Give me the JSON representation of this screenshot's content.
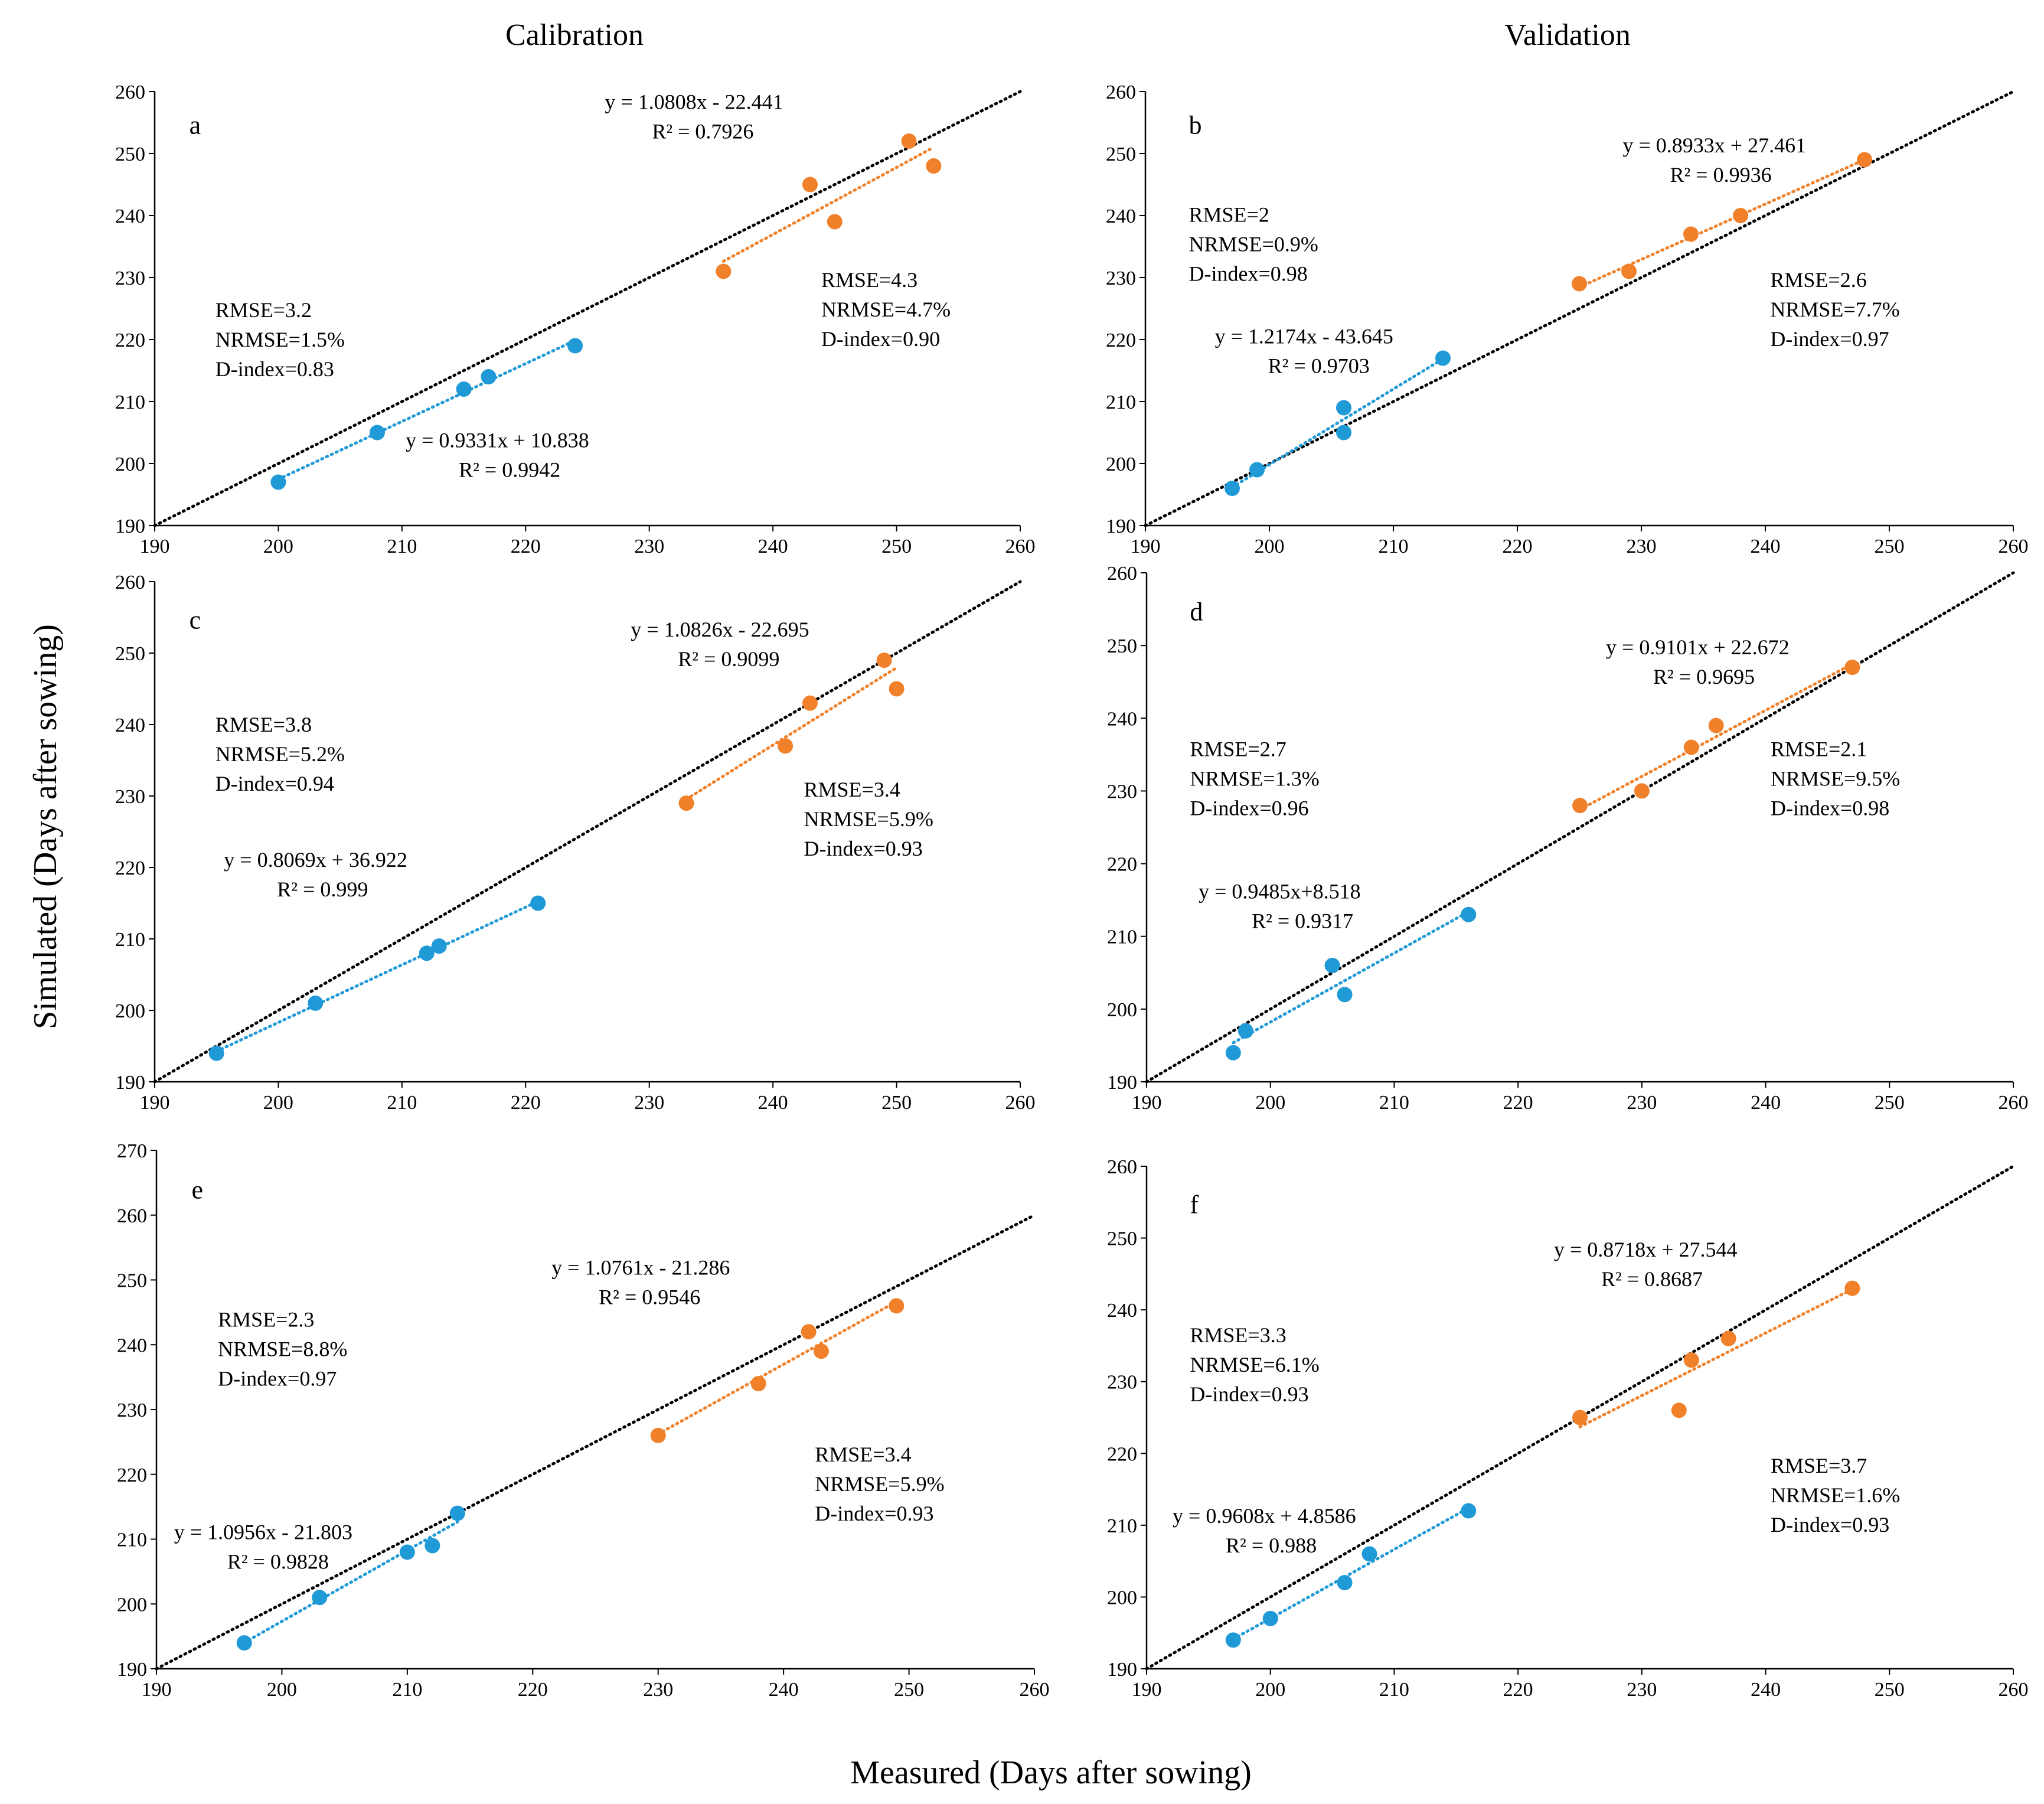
{
  "figure": {
    "col_titles": [
      "Calibration",
      "Validation"
    ],
    "xlabel": "Measured (Days after sowing)",
    "ylabel": "Simulated (Days after sowing)",
    "colors": {
      "blue": "#1f9ad6",
      "orange": "#f0812a",
      "one_to_one": "#000000"
    }
  },
  "chart_data": [
    {
      "type": "scatter",
      "label": "a",
      "xlim": [
        190,
        260
      ],
      "ylim": [
        190,
        260
      ],
      "xticks": [
        190,
        200,
        210,
        220,
        230,
        240,
        250,
        260
      ],
      "yticks": [
        190,
        200,
        210,
        220,
        230,
        240,
        250,
        260
      ],
      "blue": {
        "x": [
          200,
          208,
          215,
          217,
          224
        ],
        "y": [
          197,
          205,
          212,
          214,
          219
        ],
        "fit": [
          0.9331,
          10.838
        ],
        "eq": "y = 0.9331x + 10.838",
        "r2": "R² = 0.9942",
        "stats": [
          "RMSE=3.2",
          "NRMSE=1.5%",
          "D-index=0.83"
        ]
      },
      "orange": {
        "x": [
          236,
          243,
          245,
          251,
          253
        ],
        "y": [
          231,
          245,
          239,
          252,
          248
        ],
        "fit": [
          1.0808,
          -22.441
        ],
        "eq": "y = 1.0808x - 22.441",
        "r2": "R² = 0.7926",
        "stats": [
          "RMSE=4.3",
          "NRMSE=4.7%",
          "D-index=0.90"
        ]
      }
    },
    {
      "type": "scatter",
      "label": "b",
      "xlim": [
        190,
        260
      ],
      "ylim": [
        190,
        260
      ],
      "xticks": [
        190,
        200,
        210,
        220,
        230,
        240,
        250,
        260
      ],
      "yticks": [
        190,
        200,
        210,
        220,
        230,
        240,
        250,
        260
      ],
      "blue": {
        "x": [
          197,
          199,
          206,
          206,
          214
        ],
        "y": [
          196,
          199,
          209,
          205,
          217
        ],
        "fit": [
          1.2174,
          -43.645
        ],
        "eq": "y = 1.2174x - 43.645",
        "r2": "R² = 0.9703",
        "stats": [
          "RMSE=2",
          "NRMSE=0.9%",
          "D-index=0.98"
        ]
      },
      "orange": {
        "x": [
          225,
          229,
          234,
          238,
          248
        ],
        "y": [
          229,
          231,
          237,
          240,
          249
        ],
        "fit": [
          0.8933,
          27.461
        ],
        "eq": "y = 0.8933x + 27.461",
        "r2": "R² = 0.9936",
        "stats": [
          "RMSE=2.6",
          "NRMSE=7.7%",
          "D-index=0.97"
        ]
      }
    },
    {
      "type": "scatter",
      "label": "c",
      "xlim": [
        190,
        260
      ],
      "ylim": [
        190,
        260
      ],
      "xticks": [
        190,
        200,
        210,
        220,
        230,
        240,
        250,
        260
      ],
      "yticks": [
        190,
        200,
        210,
        220,
        230,
        240,
        250,
        260
      ],
      "blue": {
        "x": [
          195,
          203,
          212,
          213,
          221
        ],
        "y": [
          194,
          201,
          208,
          209,
          215
        ],
        "fit": [
          0.8069,
          36.922
        ],
        "eq": "y = 0.8069x + 36.922",
        "r2": "R² = 0.999",
        "stats": [
          "RMSE=3.8",
          "NRMSE=5.2%",
          "D-index=0.94"
        ]
      },
      "orange": {
        "x": [
          233,
          241,
          243,
          249,
          250
        ],
        "y": [
          229,
          237,
          243,
          249,
          245
        ],
        "fit": [
          1.0826,
          -22.695
        ],
        "eq": "y = 1.0826x - 22.695",
        "r2": "R² = 0.9099",
        "stats": [
          "RMSE=3.4",
          "NRMSE=5.9%",
          "D-index=0.93"
        ]
      }
    },
    {
      "type": "scatter",
      "label": "d",
      "xlim": [
        190,
        260
      ],
      "ylim": [
        190,
        260
      ],
      "xticks": [
        190,
        200,
        210,
        220,
        230,
        240,
        250,
        260
      ],
      "yticks": [
        190,
        200,
        210,
        220,
        230,
        240,
        250,
        260
      ],
      "blue": {
        "x": [
          197,
          198,
          205,
          206,
          216
        ],
        "y": [
          194,
          197,
          206,
          202,
          213
        ],
        "fit": [
          0.9485,
          8.518
        ],
        "eq": "y = 0.9485x+8.518",
        "r2": "R² = 0.9317",
        "stats": [
          "RMSE=2.7",
          "NRMSE=1.3%",
          "D-index=0.96"
        ]
      },
      "orange": {
        "x": [
          225,
          230,
          234,
          236,
          247
        ],
        "y": [
          228,
          230,
          236,
          239,
          247
        ],
        "fit": [
          0.9101,
          22.672
        ],
        "eq": "y = 0.9101x + 22.672",
        "r2": "R² = 0.9695",
        "stats": [
          "RMSE=2.1",
          "NRMSE=9.5%",
          "D-index=0.98"
        ]
      }
    },
    {
      "type": "scatter",
      "label": "e",
      "xlim": [
        190,
        260
      ],
      "ylim": [
        190,
        270
      ],
      "xticks": [
        190,
        200,
        210,
        220,
        230,
        240,
        250,
        260
      ],
      "yticks": [
        190,
        200,
        210,
        220,
        230,
        240,
        250,
        260,
        270
      ],
      "blue": {
        "x": [
          197,
          203,
          210,
          212,
          214
        ],
        "y": [
          194,
          201,
          208,
          209,
          214
        ],
        "fit": [
          1.0956,
          -21.803
        ],
        "eq": "y = 1.0956x - 21.803",
        "r2": "R² = 0.9828",
        "stats": [
          "RMSE=2.3",
          "NRMSE=8.8%",
          "D-index=0.97"
        ]
      },
      "orange": {
        "x": [
          230,
          238,
          242,
          243,
          249
        ],
        "y": [
          226,
          234,
          242,
          239,
          246
        ],
        "fit": [
          1.0761,
          -21.286
        ],
        "eq": "y = 1.0761x - 21.286",
        "r2": "R² = 0.9546",
        "stats": [
          "RMSE=3.4",
          "NRMSE=5.9%",
          "D-index=0.93"
        ]
      }
    },
    {
      "type": "scatter",
      "label": "f",
      "xlim": [
        190,
        260
      ],
      "ylim": [
        190,
        260
      ],
      "xticks": [
        190,
        200,
        210,
        220,
        230,
        240,
        250,
        260
      ],
      "yticks": [
        190,
        200,
        210,
        220,
        230,
        240,
        250,
        260
      ],
      "blue": {
        "x": [
          197,
          200,
          206,
          208,
          216
        ],
        "y": [
          194,
          197,
          202,
          206,
          212
        ],
        "fit": [
          0.9608,
          4.8586
        ],
        "eq": "y = 0.9608x + 4.8586",
        "r2": "R² = 0.988",
        "stats": [
          "RMSE=3.3",
          "NRMSE=6.1%",
          "D-index=0.93"
        ]
      },
      "orange": {
        "x": [
          225,
          233,
          234,
          237,
          247
        ],
        "y": [
          225,
          226,
          233,
          236,
          243
        ],
        "fit": [
          0.8718,
          27.544
        ],
        "eq": "y = 0.8718x + 27.544",
        "r2": "R² = 0.8687",
        "stats": [
          "RMSE=3.7",
          "NRMSE=1.6%",
          "D-index=0.93"
        ]
      }
    }
  ]
}
